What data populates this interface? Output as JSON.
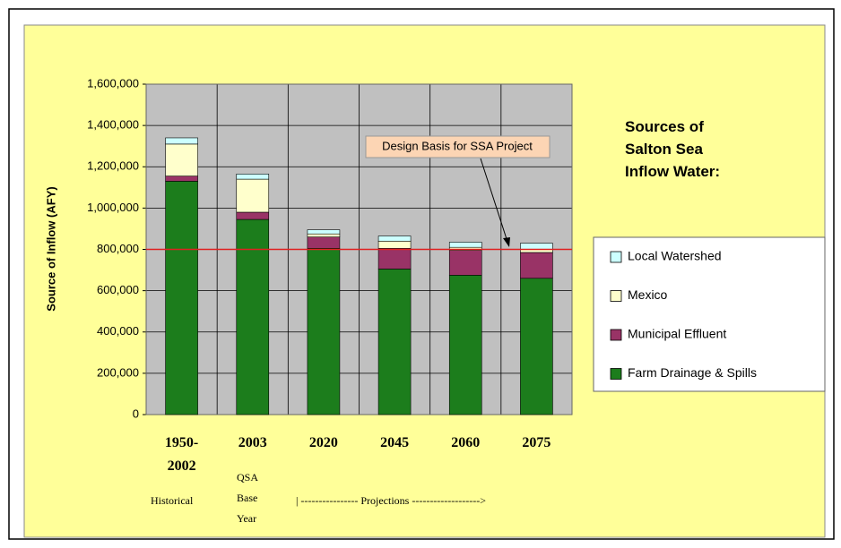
{
  "chart_data": {
    "type": "stacked_bar",
    "title": "Sources of Salton Sea Inflow Water:",
    "y_label": "Source of Inflow (AFY)",
    "categories": [
      "1950-2002",
      "2003",
      "2020",
      "2045",
      "2060",
      "2075"
    ],
    "x_notes": [
      "Historical",
      "QSA Base Year",
      "| ---------------- Projections ------------------->"
    ],
    "series": [
      {
        "name": "Farm Drainage & Spills",
        "color": "#1c7d1c",
        "values": [
          1130000,
          945000,
          805000,
          705000,
          675000,
          660000
        ]
      },
      {
        "name": "Municipal Effluent",
        "color": "#993366",
        "values": [
          25000,
          35000,
          55000,
          100000,
          120000,
          125000
        ]
      },
      {
        "name": "Mexico",
        "color": "#ffffcc",
        "values": [
          155000,
          160000,
          15000,
          35000,
          15000,
          15000
        ]
      },
      {
        "name": "Local Watershed",
        "color": "#ccffff",
        "values": [
          30000,
          25000,
          20000,
          25000,
          25000,
          30000
        ]
      }
    ],
    "reference_line": {
      "value": 800000,
      "label": "Design Basis for SSA Project",
      "color": "#e02020"
    },
    "ylim": [
      0,
      1600000
    ],
    "yticks": [
      0,
      {
        "value": 200000,
        "label": "200,000"
      },
      {
        "value": 400000,
        "label": "400,000"
      },
      {
        "value": 600000,
        "label": "600,000"
      },
      {
        "value": 800000,
        "label": "800,000"
      },
      {
        "value": 1000000,
        "label": "1,000,000"
      },
      {
        "value": 1200000,
        "label": "1,200,000"
      },
      {
        "value": 1400000,
        "label": "1,400,000"
      },
      {
        "value": 1600000,
        "label": "1,600,000"
      }
    ],
    "grid": true
  }
}
